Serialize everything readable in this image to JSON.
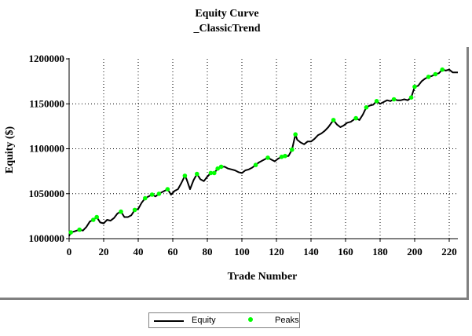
{
  "chart_data": {
    "type": "line",
    "title": "Equity Curve",
    "subtitle": "_ClassicTrend",
    "xlabel": "Trade Number",
    "ylabel": "Equity ($)",
    "xlim": [
      0,
      225
    ],
    "ylim": [
      1000000,
      1200000
    ],
    "x_ticks": [
      "0",
      "20",
      "40",
      "60",
      "80",
      "100",
      "120",
      "140",
      "160",
      "180",
      "200",
      "220"
    ],
    "y_ticks": [
      "1000000",
      "1050000",
      "1100000",
      "1150000",
      "1200000"
    ],
    "grid": true,
    "legend_position": "bottom-center",
    "series": [
      {
        "name": "Equity",
        "color": "#000000",
        "points": [
          [
            0,
            1003000
          ],
          [
            1,
            1007000
          ],
          [
            3,
            1008000
          ],
          [
            6,
            1010000
          ],
          [
            8,
            1009000
          ],
          [
            10,
            1013000
          ],
          [
            12,
            1019000
          ],
          [
            14,
            1021000
          ],
          [
            16,
            1024000
          ],
          [
            18,
            1018000
          ],
          [
            20,
            1017000
          ],
          [
            22,
            1021000
          ],
          [
            24,
            1020000
          ],
          [
            26,
            1023000
          ],
          [
            28,
            1028000
          ],
          [
            30,
            1030000
          ],
          [
            32,
            1024000
          ],
          [
            34,
            1024000
          ],
          [
            36,
            1026000
          ],
          [
            38,
            1032000
          ],
          [
            40,
            1033000
          ],
          [
            42,
            1040000
          ],
          [
            44,
            1045000
          ],
          [
            46,
            1047000
          ],
          [
            48,
            1049000
          ],
          [
            50,
            1047000
          ],
          [
            52,
            1050000
          ],
          [
            54,
            1052000
          ],
          [
            56,
            1054000
          ],
          [
            57,
            1055000
          ],
          [
            59,
            1049000
          ],
          [
            61,
            1053000
          ],
          [
            63,
            1055000
          ],
          [
            65,
            1062000
          ],
          [
            67,
            1070000
          ],
          [
            68,
            1066000
          ],
          [
            70,
            1055000
          ],
          [
            72,
            1065000
          ],
          [
            74,
            1072000
          ],
          [
            76,
            1066000
          ],
          [
            78,
            1064000
          ],
          [
            80,
            1069000
          ],
          [
            82,
            1073000
          ],
          [
            84,
            1073000
          ],
          [
            86,
            1078000
          ],
          [
            88,
            1080000
          ],
          [
            90,
            1080000
          ],
          [
            92,
            1078000
          ],
          [
            94,
            1077000
          ],
          [
            96,
            1076000
          ],
          [
            98,
            1074000
          ],
          [
            100,
            1073000
          ],
          [
            102,
            1076000
          ],
          [
            104,
            1077000
          ],
          [
            106,
            1079000
          ],
          [
            108,
            1082000
          ],
          [
            110,
            1085000
          ],
          [
            112,
            1087000
          ],
          [
            115,
            1090000
          ],
          [
            117,
            1088000
          ],
          [
            119,
            1086000
          ],
          [
            121,
            1089000
          ],
          [
            123,
            1091000
          ],
          [
            125,
            1092000
          ],
          [
            127,
            1092000
          ],
          [
            129,
            1099000
          ],
          [
            131,
            1116000
          ],
          [
            132,
            1110000
          ],
          [
            134,
            1107000
          ],
          [
            136,
            1105000
          ],
          [
            138,
            1108000
          ],
          [
            140,
            1108000
          ],
          [
            142,
            1111000
          ],
          [
            144,
            1115000
          ],
          [
            146,
            1117000
          ],
          [
            148,
            1120000
          ],
          [
            150,
            1124000
          ],
          [
            153,
            1132000
          ],
          [
            155,
            1127000
          ],
          [
            157,
            1124000
          ],
          [
            159,
            1126000
          ],
          [
            161,
            1129000
          ],
          [
            163,
            1130000
          ],
          [
            166,
            1134000
          ],
          [
            168,
            1132000
          ],
          [
            170,
            1138000
          ],
          [
            172,
            1146000
          ],
          [
            174,
            1148000
          ],
          [
            176,
            1149000
          ],
          [
            178,
            1153000
          ],
          [
            180,
            1150000
          ],
          [
            182,
            1152000
          ],
          [
            184,
            1154000
          ],
          [
            186,
            1153000
          ],
          [
            188,
            1155000
          ],
          [
            190,
            1154000
          ],
          [
            192,
            1154000
          ],
          [
            194,
            1155000
          ],
          [
            196,
            1154000
          ],
          [
            198,
            1157000
          ],
          [
            200,
            1169000
          ],
          [
            202,
            1170000
          ],
          [
            204,
            1175000
          ],
          [
            206,
            1178000
          ],
          [
            208,
            1180000
          ],
          [
            210,
            1181000
          ],
          [
            212,
            1183000
          ],
          [
            214,
            1184000
          ],
          [
            216,
            1188000
          ],
          [
            218,
            1187000
          ],
          [
            220,
            1188000
          ],
          [
            222,
            1185000
          ],
          [
            225,
            1185000
          ]
        ]
      },
      {
        "name": "Peaks",
        "color": "#00ff00",
        "points": [
          [
            1,
            1007000
          ],
          [
            6,
            1010000
          ],
          [
            14,
            1021000
          ],
          [
            16,
            1024000
          ],
          [
            30,
            1030000
          ],
          [
            38,
            1032000
          ],
          [
            44,
            1045000
          ],
          [
            48,
            1049000
          ],
          [
            52,
            1050000
          ],
          [
            57,
            1055000
          ],
          [
            67,
            1070000
          ],
          [
            74,
            1072000
          ],
          [
            82,
            1073000
          ],
          [
            84,
            1073000
          ],
          [
            86,
            1078000
          ],
          [
            88,
            1080000
          ],
          [
            108,
            1082000
          ],
          [
            115,
            1090000
          ],
          [
            123,
            1091000
          ],
          [
            125,
            1092000
          ],
          [
            129,
            1099000
          ],
          [
            131,
            1116000
          ],
          [
            153,
            1132000
          ],
          [
            166,
            1134000
          ],
          [
            172,
            1146000
          ],
          [
            178,
            1153000
          ],
          [
            188,
            1155000
          ],
          [
            198,
            1157000
          ],
          [
            200,
            1169000
          ],
          [
            208,
            1180000
          ],
          [
            212,
            1183000
          ],
          [
            216,
            1188000
          ]
        ]
      }
    ]
  }
}
